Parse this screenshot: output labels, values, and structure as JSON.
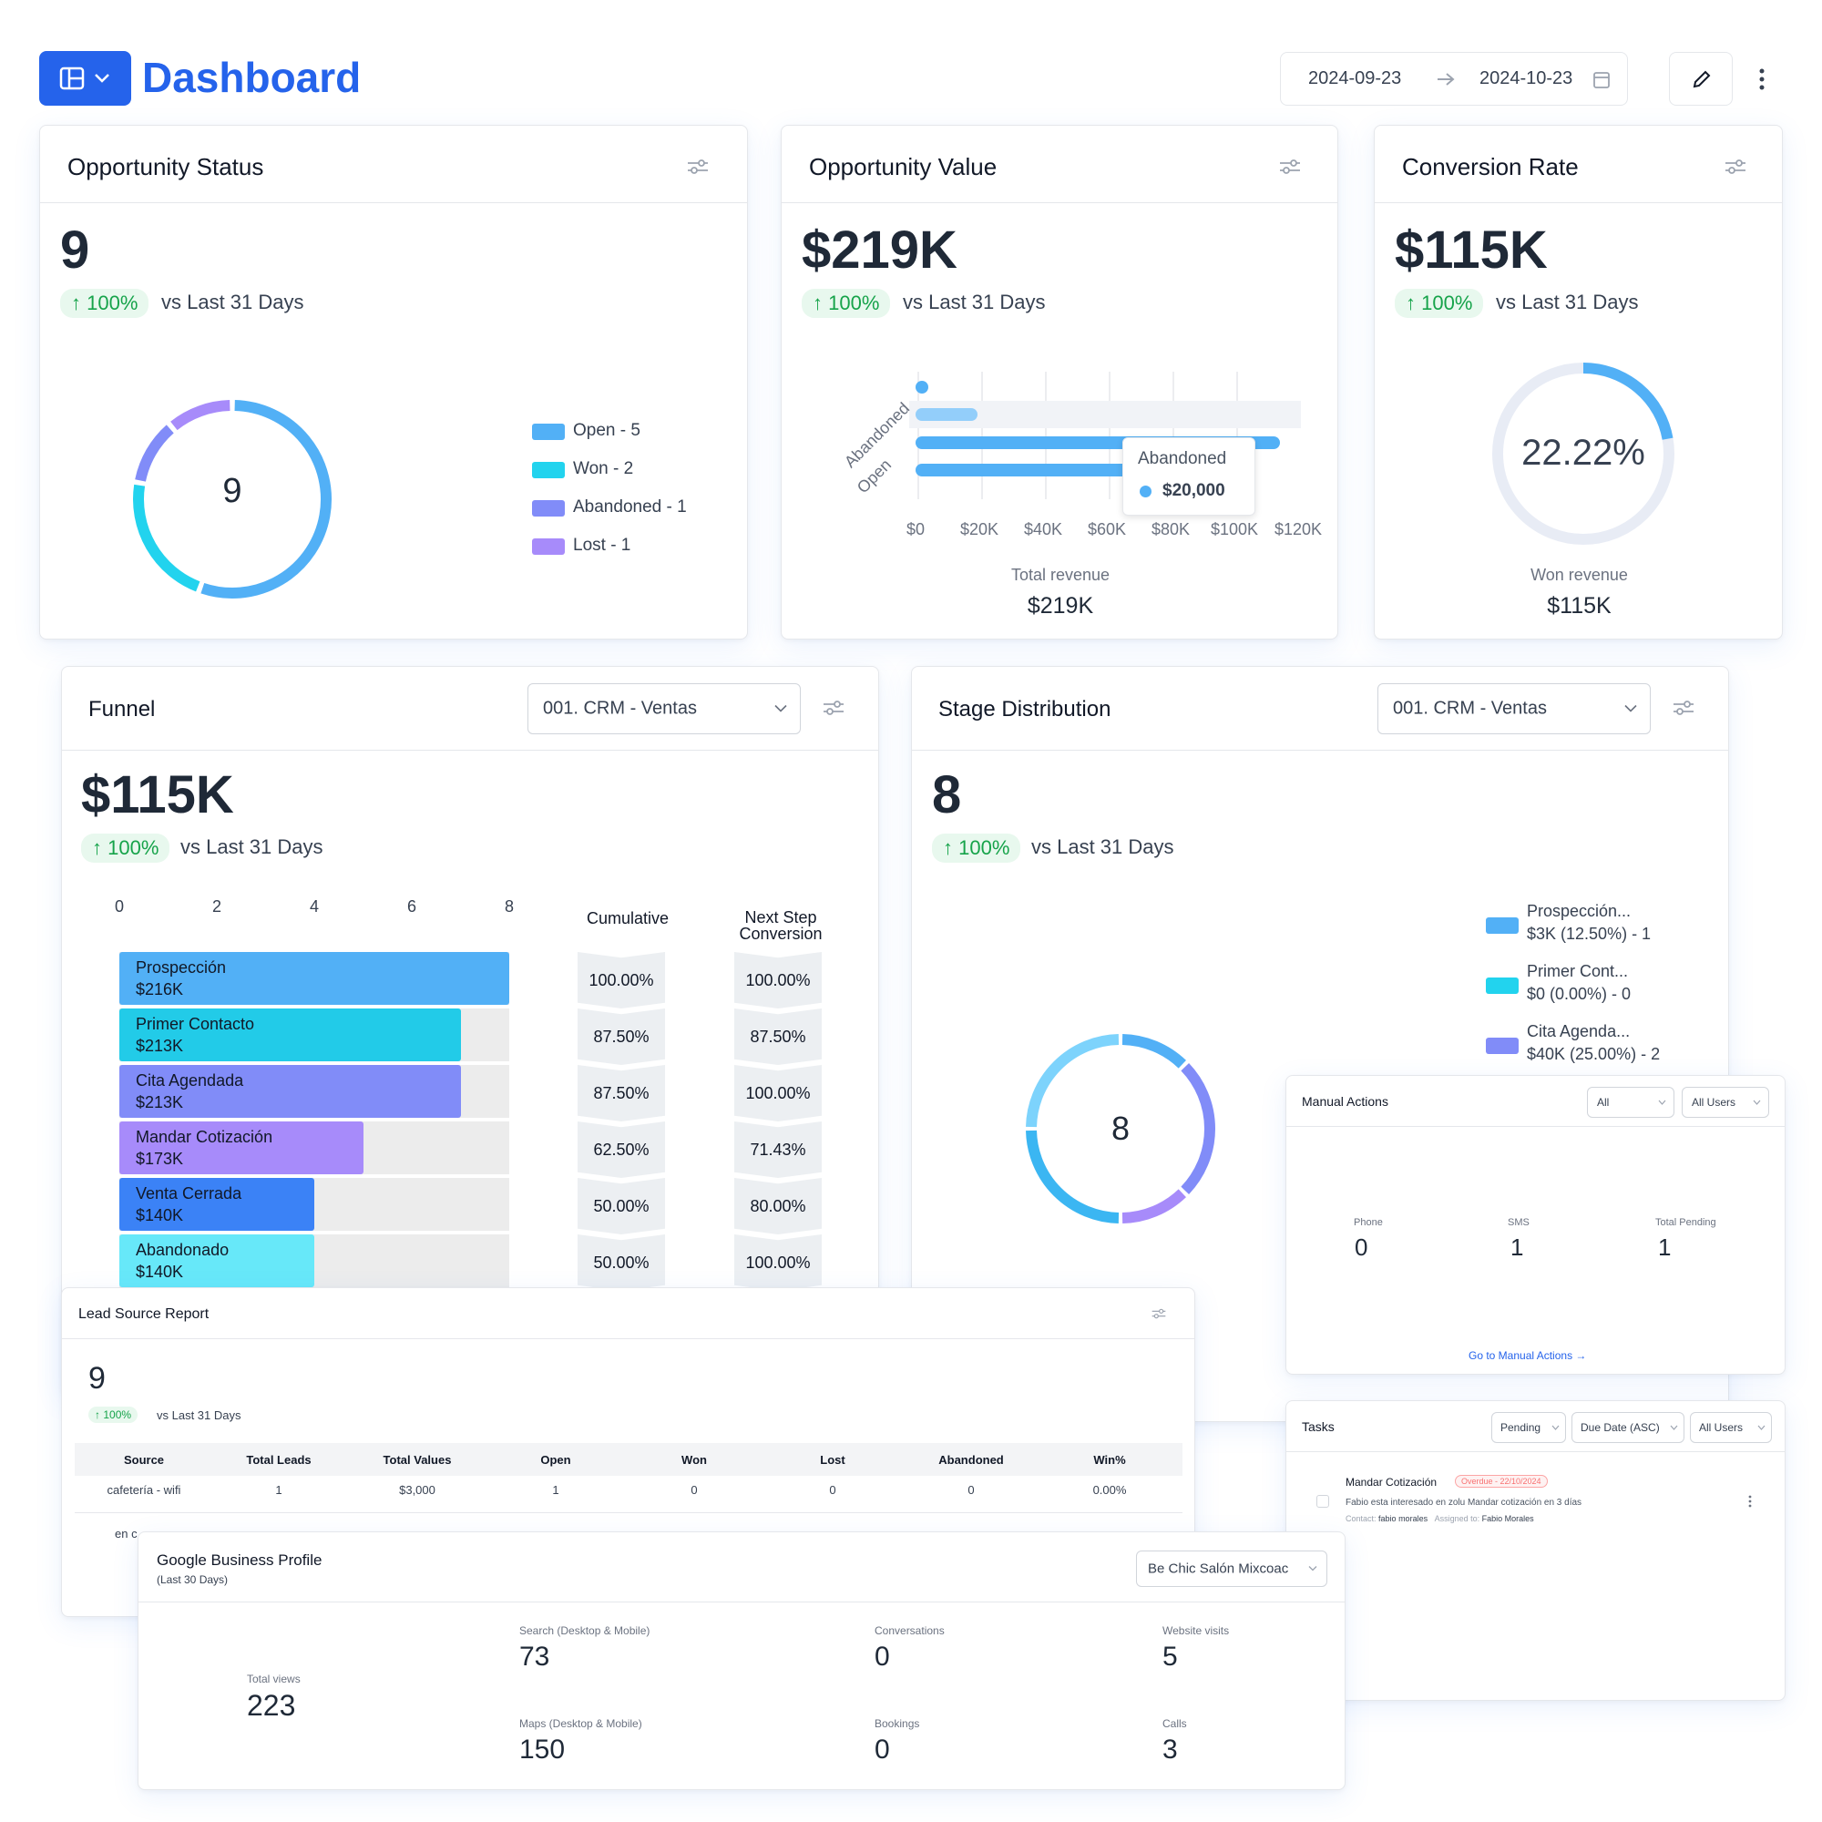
{
  "header": {
    "title": "Dashboard",
    "date_start": "2024-09-23",
    "date_end": "2024-10-23",
    "accent": "#2563eb"
  },
  "opportunity_status": {
    "title": "Opportunity Status",
    "value": "9",
    "badge": "100%",
    "vs": "vs Last 31 Days",
    "donut_center": "9",
    "legend": [
      "Open - 5",
      "Won - 2",
      "Abandoned - 1",
      "Lost - 1"
    ],
    "colors": [
      "#52b0f6",
      "#22d3ee",
      "#818cf8",
      "#a78bfa"
    ]
  },
  "opportunity_value": {
    "title": "Opportunity Value",
    "value": "$219K",
    "badge": "100%",
    "vs": "vs Last 31 Days",
    "y_labels": [
      "Abandoned",
      "Open"
    ],
    "x_ticks": [
      "$0",
      "$20K",
      "$40K",
      "$60K",
      "$80K",
      "$100K",
      "$120K"
    ],
    "tooltip_label": "Abandoned",
    "tooltip_value": "$20,000",
    "footer_label": "Total revenue",
    "footer_value": "$219K"
  },
  "conversion_rate": {
    "title": "Conversion Rate",
    "value": "$115K",
    "badge": "100%",
    "vs": "vs Last 31 Days",
    "gauge_text": "22.22%",
    "gauge_fraction": 0.2222,
    "footer_label": "Won revenue",
    "footer_value": "$115K"
  },
  "funnel": {
    "title": "Funnel",
    "select": "001. CRM - Ventas",
    "value": "$115K",
    "badge": "100%",
    "vs": "vs Last 31 Days",
    "axis_ticks": [
      "0",
      "2",
      "4",
      "6",
      "8"
    ],
    "col_cumulative": "Cumulative",
    "col_next_line1": "Next Step",
    "col_next_line2": "Conversion",
    "rows": [
      {
        "name": "Prospección",
        "amount": "$216K",
        "count": 8,
        "cumulative": "100.00%",
        "next": "100.00%",
        "color": "#52b0f6"
      },
      {
        "name": "Primer Contacto",
        "amount": "$213K",
        "count": 7,
        "cumulative": "87.50%",
        "next": "87.50%",
        "color": "#22cbe8"
      },
      {
        "name": "Cita Agendada",
        "amount": "$213K",
        "count": 7,
        "cumulative": "87.50%",
        "next": "100.00%",
        "color": "#818cf8"
      },
      {
        "name": "Mandar Cotización",
        "amount": "$173K",
        "count": 5,
        "cumulative": "62.50%",
        "next": "71.43%",
        "color": "#a78bfa"
      },
      {
        "name": "Venta Cerrada",
        "amount": "$140K",
        "count": 4,
        "cumulative": "50.00%",
        "next": "80.00%",
        "color": "#3b82f6"
      },
      {
        "name": "Abandonado",
        "amount": "$140K",
        "count": 4,
        "cumulative": "50.00%",
        "next": "100.00%",
        "color": "#67e8f9"
      }
    ]
  },
  "stage_distribution": {
    "title": "Stage Distribution",
    "select": "001. CRM - Ventas",
    "value": "8",
    "badge": "100%",
    "vs": "vs Last 31 Days",
    "donut_center": "8",
    "legend": [
      {
        "l1": "Prospección...",
        "l2": "$3K (12.50%) - 1",
        "color": "#52b0f6"
      },
      {
        "l1": "Primer Cont...",
        "l2": "$0 (0.00%) - 0",
        "color": "#22d3ee"
      },
      {
        "l1": "Cita Agenda...",
        "l2": "$40K (25.00%) - 2",
        "color": "#818cf8"
      }
    ]
  },
  "manual_actions": {
    "title": "Manual Actions",
    "filter1": "All",
    "filter2": "All Users",
    "stats": [
      {
        "label": "Phone",
        "value": "0"
      },
      {
        "label": "SMS",
        "value": "1"
      },
      {
        "label": "Total Pending",
        "value": "1"
      }
    ],
    "link": "Go to Manual Actions"
  },
  "tasks": {
    "title": "Tasks",
    "filter1": "Pending",
    "filter2": "Due Date (ASC)",
    "filter3": "All Users",
    "task_title": "Mandar Cotización",
    "task_badge": "Overdue - 22/10/2024",
    "task_desc": "Fabio esta interesado en zolu Mandar cotización en 3 días",
    "contact_label": "Contact:",
    "contact_value": "fabio morales",
    "assigned_label": "Assigned to:",
    "assigned_value": "Fabio Morales"
  },
  "lead_source": {
    "title": "Lead Source Report",
    "value": "9",
    "badge": "100%",
    "vs": "vs Last 31 Days",
    "columns": [
      "Source",
      "Total Leads",
      "Total Values",
      "Open",
      "Won",
      "Lost",
      "Abandoned",
      "Win%"
    ],
    "rows": [
      [
        "cafetería - wifi",
        "1",
        "$3,000",
        "1",
        "0",
        "0",
        "0",
        "0.00%"
      ]
    ],
    "partial_row": "en c"
  },
  "google_business": {
    "title": "Google Business Profile",
    "subtitle": "(Last 30 Days)",
    "select": "Be Chic Salón Mixcoac",
    "total_views_label": "Total views",
    "total_views": "223",
    "metrics": [
      {
        "label": "Search (Desktop & Mobile)",
        "value": "73"
      },
      {
        "label": "Conversations",
        "value": "0"
      },
      {
        "label": "Website visits",
        "value": "5"
      },
      {
        "label": "Maps (Desktop & Mobile)",
        "value": "150"
      },
      {
        "label": "Bookings",
        "value": "0"
      },
      {
        "label": "Calls",
        "value": "3"
      }
    ]
  }
}
